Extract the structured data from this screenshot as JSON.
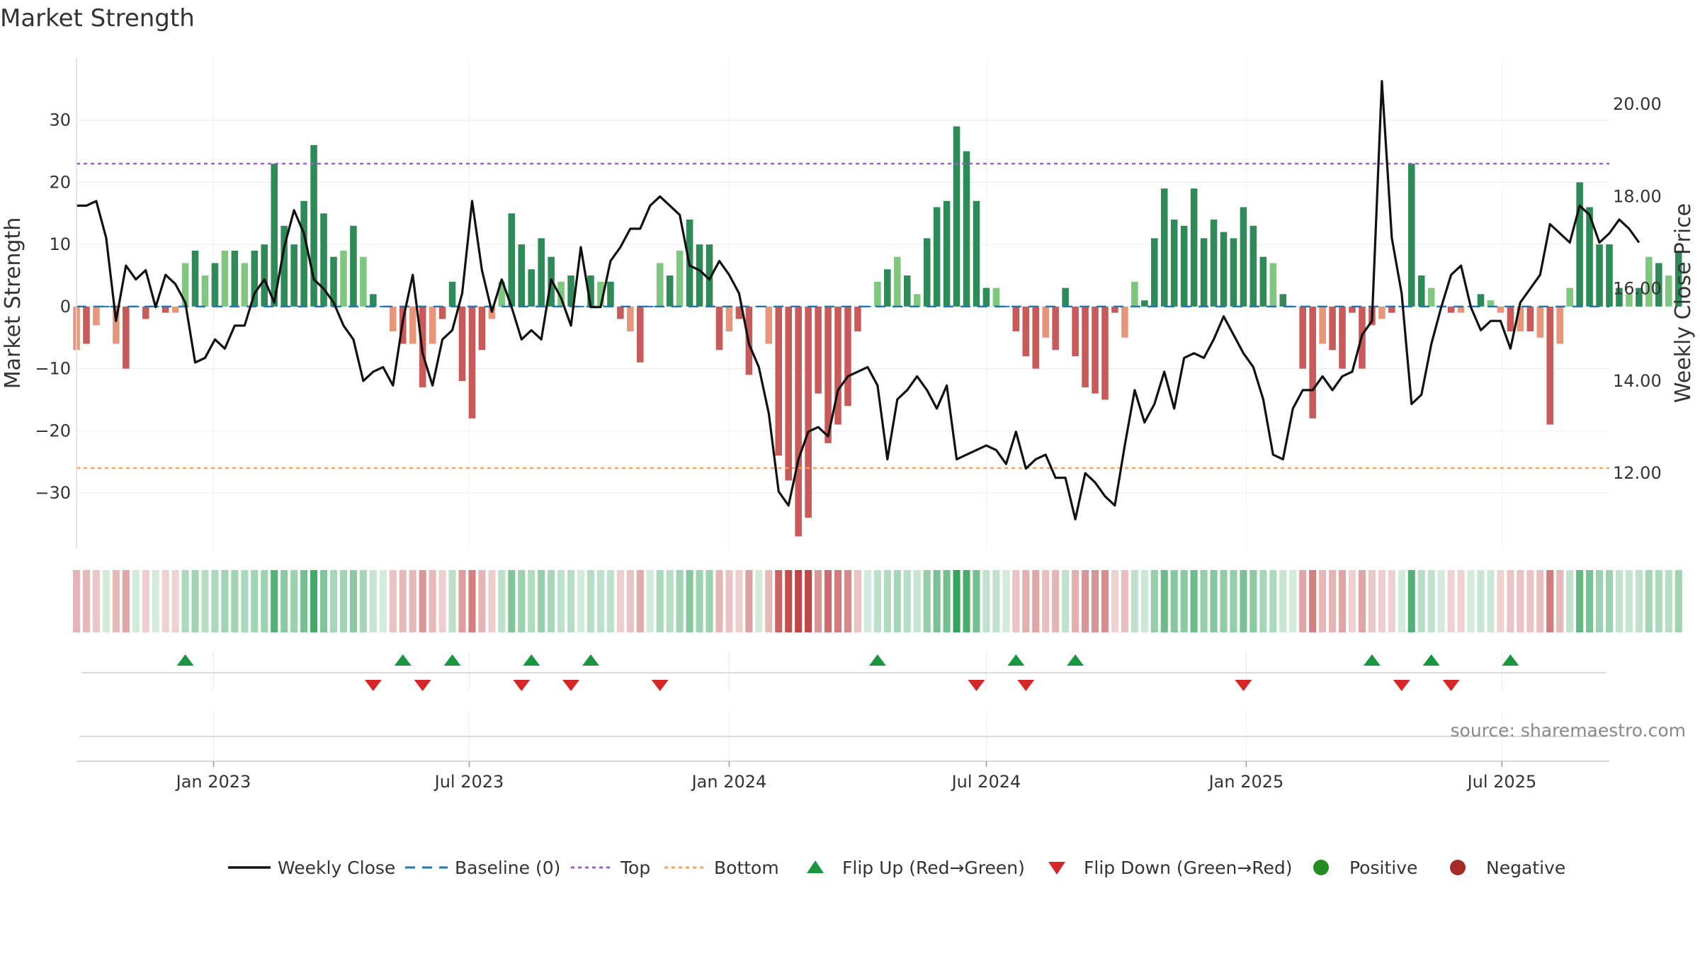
{
  "title": "Market Strength",
  "source": "source: sharemaestro.com",
  "colors": {
    "strong_green": "#2e8b57",
    "light_green": "#7fc77f",
    "strong_red": "#c85a5a",
    "light_red": "#e8967a",
    "close_line": "#111111",
    "baseline": "#1f77b4",
    "top": "#9467bd",
    "bottom": "#f4a460",
    "flip_up": "#1a9641",
    "flip_down": "#d62728",
    "positive": "#228b22",
    "negative": "#a52a2a"
  },
  "chart_data": {
    "type": "bar",
    "y_left_label": "Market Strength",
    "y_right_label": "Weekly Close Price",
    "y_left_ticks": [
      30,
      20,
      10,
      0,
      -10,
      -20,
      -30
    ],
    "y_left_tick_labels": [
      "30",
      "20",
      "10",
      "0",
      "−10",
      "−20",
      "−30"
    ],
    "y_left_range": [
      -39,
      40
    ],
    "y_right_ticks": [
      20.0,
      18.0,
      16.0,
      14.0,
      12.0
    ],
    "y_right_tick_labels": [
      "20.00",
      "18.00",
      "16.00",
      "14.00",
      "12.00"
    ],
    "y_right_range": [
      10.36,
      21.0
    ],
    "x_range": [
      "2022-09-26",
      "2025-09-15"
    ],
    "x_ticks": [
      {
        "date": "2023-01-01",
        "label": "Jan 2023"
      },
      {
        "date": "2023-07-01",
        "label": "Jul 2023"
      },
      {
        "date": "2024-01-01",
        "label": "Jan 2024"
      },
      {
        "date": "2024-07-01",
        "label": "Jul 2024"
      },
      {
        "date": "2025-01-01",
        "label": "Jan 2025"
      },
      {
        "date": "2025-07-01",
        "label": "Jul 2025"
      }
    ],
    "top_level": 23,
    "bottom_level": -26,
    "start_date": "2022-09-26",
    "strength": [
      -7,
      -6,
      -3,
      0,
      -6,
      -10,
      0,
      -2,
      0,
      -1,
      -1,
      7,
      9,
      5,
      7,
      9,
      9,
      7,
      9,
      10,
      23,
      13,
      10,
      17,
      26,
      15,
      8,
      9,
      13,
      8,
      2,
      0,
      -4,
      -6,
      -6,
      -13,
      -6,
      -2,
      4,
      -12,
      -18,
      -7,
      -2,
      4,
      15,
      10,
      6,
      11,
      8,
      4,
      5,
      0,
      5,
      4,
      4,
      -2,
      -4,
      -9,
      0,
      7,
      5,
      9,
      14,
      10,
      10,
      -7,
      -4,
      -2,
      -11,
      0,
      -6,
      -24,
      -28,
      -37,
      -34,
      -14,
      -22,
      -19,
      -16,
      -4,
      0,
      4,
      6,
      8,
      5,
      2,
      11,
      16,
      17,
      29,
      25,
      17,
      3,
      3,
      0,
      -4,
      -8,
      -10,
      -5,
      -7,
      3,
      -8,
      -13,
      -14,
      -15,
      -1,
      -5,
      4,
      1,
      11,
      19,
      14,
      13,
      19,
      11,
      14,
      12,
      11,
      16,
      13,
      8,
      7,
      2,
      0,
      -10,
      -18,
      -6,
      -7,
      -10,
      -1,
      -10,
      -3,
      -2,
      -1,
      0,
      23,
      5,
      3,
      0,
      -1,
      -1,
      0,
      2,
      1,
      -1,
      -4,
      -4,
      -4,
      -5,
      -19,
      -6,
      3,
      20,
      16,
      10,
      10,
      3,
      2,
      3,
      8,
      7,
      5,
      9
    ],
    "close": [
      17.8,
      17.8,
      17.9,
      17.1,
      15.3,
      16.5,
      16.2,
      16.4,
      15.6,
      16.3,
      16.1,
      15.7,
      14.4,
      14.5,
      14.9,
      14.7,
      15.2,
      15.2,
      15.9,
      16.2,
      15.7,
      16.9,
      17.7,
      17.2,
      16.2,
      16.0,
      15.7,
      15.2,
      14.9,
      14.0,
      14.2,
      14.3,
      13.9,
      15.3,
      16.3,
      14.6,
      13.9,
      14.9,
      15.1,
      15.9,
      17.9,
      16.4,
      15.5,
      16.2,
      15.6,
      14.9,
      15.1,
      14.9,
      16.2,
      15.8,
      15.2,
      16.9,
      15.6,
      15.6,
      16.6,
      16.9,
      17.3,
      17.3,
      17.8,
      18.0,
      17.8,
      17.6,
      16.5,
      16.4,
      16.2,
      16.6,
      16.3,
      15.9,
      14.8,
      14.3,
      13.3,
      11.6,
      11.3,
      12.3,
      12.9,
      13.0,
      12.8,
      13.8,
      14.1,
      14.2,
      14.3,
      13.9,
      12.3,
      13.6,
      13.8,
      14.1,
      13.8,
      13.4,
      13.9,
      12.3,
      12.4,
      12.5,
      12.6,
      12.5,
      12.2,
      12.9,
      12.1,
      12.3,
      12.4,
      11.9,
      11.9,
      11.0,
      12.0,
      11.8,
      11.5,
      11.3,
      12.6,
      13.8,
      13.1,
      13.5,
      14.2,
      13.4,
      14.5,
      14.6,
      14.5,
      14.9,
      15.4,
      15.0,
      14.6,
      14.3,
      13.6,
      12.4,
      12.3,
      13.4,
      13.8,
      13.8,
      14.1,
      13.8,
      14.1,
      14.2,
      15.0,
      15.3,
      20.5,
      17.1,
      15.9,
      13.5,
      13.7,
      14.8,
      15.6,
      16.3,
      16.5,
      15.6,
      15.1,
      15.3,
      15.3,
      14.7,
      15.7,
      16.0,
      16.3,
      17.4,
      17.2,
      17.0,
      17.8,
      17.6,
      17.0,
      17.2,
      17.5,
      17.3,
      17.0
    ],
    "flips_up": [
      "2022-12-12",
      "2023-05-15",
      "2023-06-19",
      "2023-08-14",
      "2023-09-25",
      "2024-04-15",
      "2024-07-22",
      "2024-09-02",
      "2025-03-31",
      "2025-05-12",
      "2025-07-07"
    ],
    "flips_down": [
      "2023-04-24",
      "2023-05-29",
      "2023-08-07",
      "2023-09-11",
      "2023-11-13",
      "2024-06-24",
      "2024-07-29",
      "2024-12-30",
      "2025-04-21",
      "2025-05-26"
    ],
    "legend": [
      {
        "key": "close",
        "label": "Weekly Close"
      },
      {
        "key": "baseline",
        "label": "Baseline (0)"
      },
      {
        "key": "top",
        "label": "Top"
      },
      {
        "key": "bottom",
        "label": "Bottom"
      },
      {
        "key": "flip_up",
        "label": "Flip Up (Red→Green)"
      },
      {
        "key": "flip_down",
        "label": "Flip Down (Green→Red)"
      },
      {
        "key": "positive",
        "label": "Positive"
      },
      {
        "key": "negative",
        "label": "Negative"
      }
    ],
    "legend_position": "bottom",
    "grid": true
  }
}
